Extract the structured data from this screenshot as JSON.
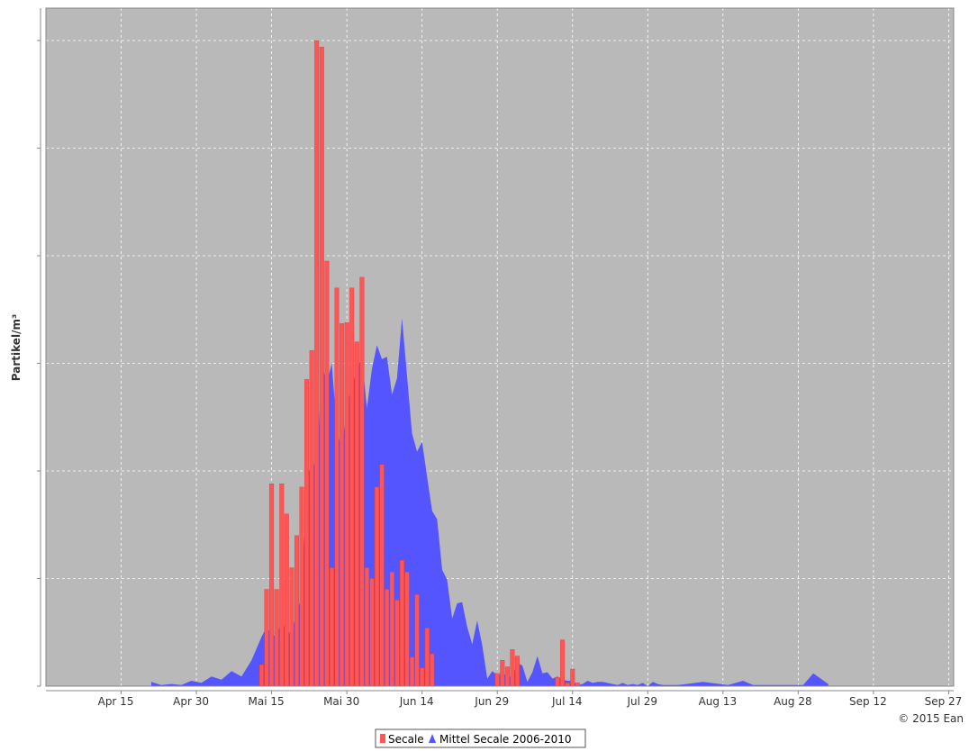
{
  "chart_data": {
    "type": "bar",
    "title": "",
    "ylabel": "Partikel/m³",
    "xlabel": "",
    "credit": "© 2015 Ean",
    "x_tick_labels": [
      "Apr 15",
      "Apr 30",
      "Mai 15",
      "Mai 30",
      "Jun 14",
      "Jun 29",
      "Jul 14",
      "Jul 29",
      "Aug 13",
      "Aug 28",
      "Sep 12",
      "Sep 27"
    ],
    "x_tick_day_offsets": [
      14,
      29,
      44,
      59,
      74,
      89,
      104,
      119,
      134,
      149,
      164,
      179
    ],
    "x_range_days": [
      -1,
      180
    ],
    "x_origin_date": "Apr 1",
    "ylim": [
      0,
      600
    ],
    "grid": true,
    "legend_position": "bottom-center",
    "colors": {
      "background": "#b9b9b9",
      "bars": "#ff5555",
      "area": "#5555ff"
    },
    "series": [
      {
        "name": "Secale",
        "kind": "bar",
        "color": "#ff5555",
        "x": [
          42,
          43,
          44,
          45,
          46,
          47,
          48,
          49,
          50,
          51,
          52,
          53,
          54,
          55,
          56,
          57,
          58,
          59,
          60,
          61,
          62,
          63,
          64,
          65,
          66,
          67,
          68,
          69,
          70,
          71,
          72,
          73,
          74,
          75,
          76,
          89,
          90,
          91,
          92,
          93,
          101,
          102,
          103,
          104,
          105
        ],
        "values": [
          20,
          90,
          188,
          90,
          188,
          160,
          110,
          140,
          185,
          285,
          312,
          600,
          594,
          395,
          110,
          370,
          337,
          338,
          370,
          320,
          380,
          110,
          100,
          185,
          206,
          90,
          106,
          80,
          117,
          106,
          27,
          85,
          17,
          54,
          30,
          12,
          24,
          18,
          34,
          28,
          8,
          43,
          3,
          16,
          3
        ]
      },
      {
        "name": "Mittel Secale 2006-2010",
        "kind": "area",
        "color": "#5555ff",
        "x": [
          20,
          22,
          24,
          26,
          28,
          30,
          32,
          34,
          36,
          38,
          40,
          42,
          43,
          44,
          45,
          46,
          47,
          48,
          49,
          50,
          51,
          52,
          53,
          54,
          55,
          56,
          57,
          58,
          59,
          60,
          61,
          62,
          63,
          64,
          65,
          66,
          67,
          68,
          69,
          70,
          71,
          72,
          73,
          74,
          75,
          76,
          77,
          78,
          79,
          80,
          81,
          82,
          83,
          84,
          85,
          86,
          87,
          88,
          89,
          90,
          91,
          92,
          93,
          94,
          95,
          96,
          97,
          98,
          99,
          100,
          101,
          102,
          103,
          104,
          105,
          106,
          107,
          108,
          109,
          110,
          111,
          112,
          113,
          114,
          115,
          116,
          117,
          118,
          119,
          120,
          121,
          122,
          125,
          130,
          135,
          138,
          140,
          150,
          152,
          155
        ],
        "values": [
          4,
          1,
          2,
          1,
          5,
          3,
          9,
          6,
          14,
          9,
          24,
          46,
          55,
          48,
          46,
          61,
          51,
          49,
          69,
          84,
          190,
          212,
          200,
          300,
          281,
          300,
          239,
          219,
          261,
          278,
          295,
          306,
          258,
          295,
          317,
          304,
          306,
          271,
          286,
          342,
          288,
          235,
          218,
          227,
          195,
          163,
          155,
          108,
          99,
          63,
          77,
          78,
          55,
          39,
          61,
          38,
          7,
          14,
          10,
          12,
          10,
          8,
          22,
          19,
          4,
          13,
          28,
          12,
          13,
          7,
          9,
          6,
          5,
          5,
          1,
          2,
          5,
          3,
          4,
          4,
          3,
          2,
          1,
          3,
          1,
          2,
          1,
          3,
          0,
          4,
          2,
          1,
          1,
          4,
          1,
          5,
          1,
          1,
          12,
          2
        ]
      }
    ]
  }
}
